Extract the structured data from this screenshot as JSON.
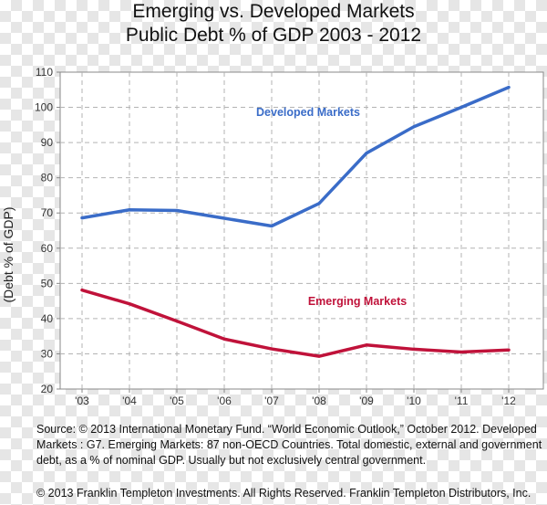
{
  "title": {
    "line1": "Emerging vs. Developed Markets",
    "line2": "Public Debt % of GDP 2003 - 2012"
  },
  "chart_data": {
    "type": "line",
    "categories": [
      "'03",
      "'04",
      "'05",
      "'06",
      "'07",
      "'08",
      "'09",
      "'10",
      "'11",
      "'12"
    ],
    "series": [
      {
        "name": "Developed Markets",
        "color": "#3a6cc8",
        "values": [
          68.6,
          70.9,
          70.7,
          68.5,
          66.3,
          72.7,
          87.0,
          94.5,
          100.0,
          105.7
        ]
      },
      {
        "name": "Emerging Markets",
        "color": "#c0123a",
        "values": [
          48.1,
          44.2,
          39.3,
          34.2,
          31.4,
          29.3,
          32.5,
          31.3,
          30.5,
          31.1
        ]
      }
    ],
    "ylabel": "(Debt % of GDP)",
    "xlabel": "",
    "ylim": [
      20,
      110
    ],
    "yticks": [
      20,
      30,
      40,
      50,
      60,
      70,
      80,
      90,
      100,
      110
    ],
    "grid": true,
    "legend": "inline labels"
  },
  "notes": {
    "source": "Source: © 2013 International Monetary Fund. “World Economic Outlook,” October 2012. Developed Markets : G7. Emerging Markets: 87 non-OECD Countries. Total domestic, external and government debt, as a % of nominal GDP. Usually but not exclusively central government.",
    "copyright": "© 2013 Franklin Templeton Investments. All Rights Reserved.  Franklin Templeton Distributors, Inc."
  }
}
